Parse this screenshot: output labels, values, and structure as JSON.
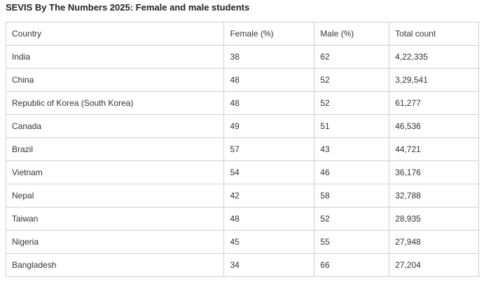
{
  "title": "SEVIS By The Numbers 2025: Female and male students",
  "table": {
    "header": [
      "Country",
      "Female (%)",
      "Male (%)",
      "Total count"
    ],
    "rows": [
      [
        "India",
        "38",
        "62",
        "4,22,335"
      ],
      [
        "China",
        "48",
        "52",
        "3,29,541"
      ],
      [
        "Republic of Korea (South Korea)",
        "48",
        "52",
        "61,277"
      ],
      [
        "Canada",
        "49",
        "51",
        "46,536"
      ],
      [
        "Brazil",
        "57",
        "43",
        "44,721"
      ],
      [
        "Vietnam",
        "54",
        "46",
        "36,176"
      ],
      [
        "Nepal",
        "42",
        "58",
        "32,788"
      ],
      [
        "Taiwan",
        "48",
        "52",
        "28,935"
      ],
      [
        "Nigeria",
        "45",
        "55",
        "27,948"
      ],
      [
        "Bangladesh",
        "34",
        "66",
        "27,204"
      ]
    ]
  }
}
